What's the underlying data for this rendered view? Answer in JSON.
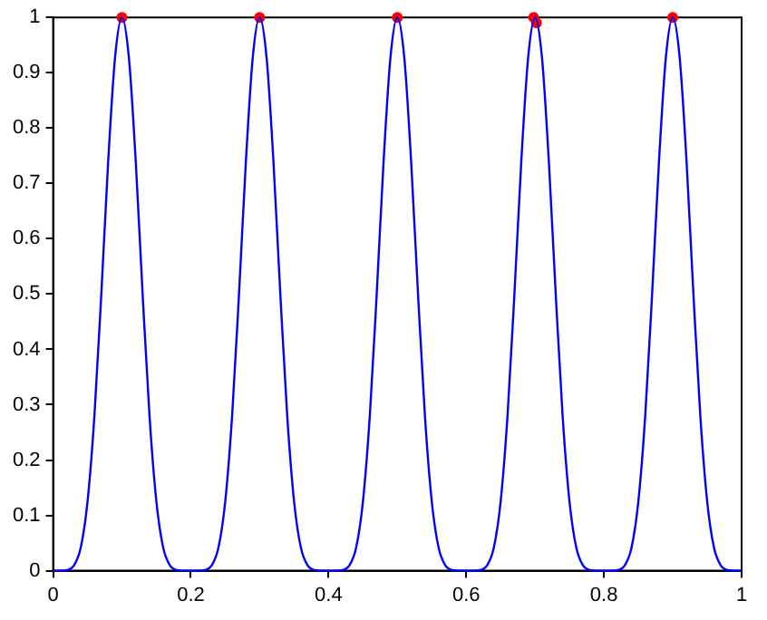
{
  "chart_data": {
    "type": "line",
    "x": [
      0,
      0.01,
      0.02,
      0.03,
      0.04,
      0.05,
      0.06,
      0.07,
      0.08,
      0.09,
      0.1,
      0.11,
      0.12,
      0.13,
      0.14,
      0.15,
      0.16,
      0.17,
      0.18,
      0.19,
      0.2,
      0.21,
      0.22,
      0.23,
      0.24,
      0.25,
      0.26,
      0.27,
      0.28,
      0.29,
      0.3,
      0.31,
      0.32,
      0.33,
      0.34,
      0.35,
      0.36,
      0.37,
      0.38,
      0.39,
      0.4,
      0.41,
      0.42,
      0.43,
      0.44,
      0.45,
      0.46,
      0.47,
      0.48,
      0.49,
      0.5,
      0.51,
      0.52,
      0.53,
      0.54,
      0.55,
      0.56,
      0.57,
      0.58,
      0.59,
      0.6,
      0.61,
      0.62,
      0.63,
      0.64,
      0.65,
      0.66,
      0.67,
      0.68,
      0.69,
      0.7,
      0.71,
      0.72,
      0.73,
      0.74,
      0.75,
      0.76,
      0.77,
      0.78,
      0.79,
      0.8,
      0.81,
      0.82,
      0.83,
      0.84,
      0.85,
      0.86,
      0.87,
      0.88,
      0.89,
      0.9,
      0.91,
      0.92,
      0.93,
      0.94,
      0.95,
      0.96,
      0.97,
      0.98,
      0.99,
      1
    ],
    "series": [
      {
        "color": "#0000ff",
        "marker": "none",
        "values": [
          0,
          0,
          0.001,
          0.009,
          0.041,
          0.125,
          0.28,
          0.5,
          0.74,
          0.928,
          1,
          0.928,
          0.74,
          0.5,
          0.28,
          0.125,
          0.041,
          0.009,
          0.001,
          0,
          0,
          0,
          0.001,
          0.009,
          0.041,
          0.125,
          0.28,
          0.5,
          0.74,
          0.928,
          1,
          0.928,
          0.74,
          0.5,
          0.28,
          0.125,
          0.041,
          0.009,
          0.001,
          0,
          0,
          0,
          0.001,
          0.009,
          0.041,
          0.125,
          0.28,
          0.5,
          0.74,
          0.928,
          1,
          0.928,
          0.74,
          0.5,
          0.28,
          0.125,
          0.041,
          0.009,
          0.001,
          0,
          0,
          0,
          0.001,
          0.009,
          0.041,
          0.125,
          0.28,
          0.5,
          0.74,
          0.928,
          1,
          0.928,
          0.74,
          0.5,
          0.28,
          0.125,
          0.041,
          0.009,
          0.001,
          0,
          0,
          0,
          0.001,
          0.009,
          0.041,
          0.125,
          0.28,
          0.5,
          0.74,
          0.928,
          1,
          0.928,
          0.74,
          0.5,
          0.28,
          0.125,
          0.041,
          0.009,
          0.001,
          0,
          0
        ]
      },
      {
        "type": "scatter",
        "color": "#ff0000",
        "marker": "circle",
        "x": [
          0.1,
          0.3,
          0.5,
          0.698,
          0.702,
          0.9
        ],
        "values": [
          1,
          1,
          1,
          1,
          0.99,
          1
        ]
      }
    ],
    "xlim": [
      0,
      1
    ],
    "xticks": [
      0,
      0.2,
      0.4,
      0.6,
      0.8,
      1
    ],
    "ylim": [
      0,
      1
    ],
    "yticks": [
      0,
      0.1,
      0.2,
      0.3,
      0.4,
      0.5,
      0.6,
      0.7,
      0.8,
      0.9,
      1
    ],
    "grid": false,
    "legend": false
  }
}
